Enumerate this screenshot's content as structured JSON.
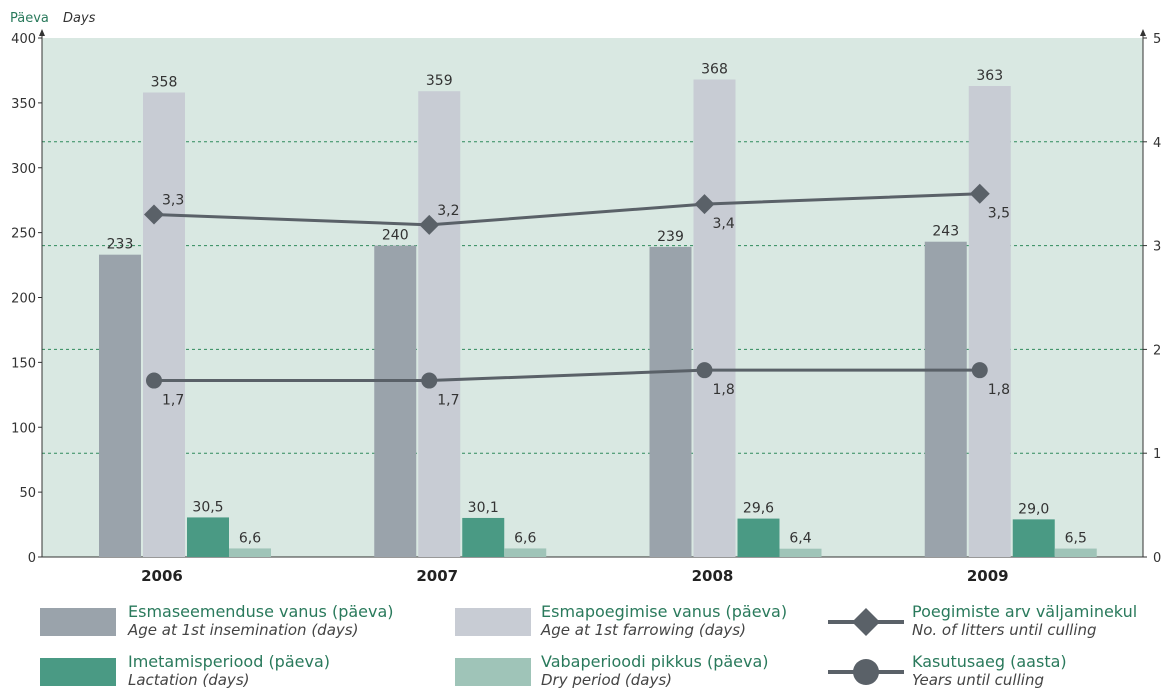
{
  "chart_data": {
    "type": "bar",
    "y_left_label_et": "Päeva",
    "y_left_label_en": "Days",
    "y_left_range": [
      0,
      400
    ],
    "y_left_ticks": [
      0,
      50,
      100,
      150,
      200,
      250,
      300,
      350,
      400
    ],
    "y_right_range": [
      0,
      5
    ],
    "y_right_ticks": [
      0,
      1,
      2,
      3,
      4,
      5
    ],
    "categories": [
      "2006",
      "2007",
      "2008",
      "2009"
    ],
    "bar_series": [
      {
        "name_et": "Esmaseemenduse vanus (päeva)",
        "name_en": "Age at 1st insemination (days)",
        "color": "#9aa3ab",
        "values": [
          233,
          240,
          239,
          243
        ],
        "labels": [
          "233",
          "240",
          "239",
          "243"
        ]
      },
      {
        "name_et": "Esmapoegimise vanus (päeva)",
        "name_en": "Age at 1st farrowing (days)",
        "color": "#c8ccd4",
        "values": [
          358,
          359,
          368,
          363
        ],
        "labels": [
          "358",
          "359",
          "368",
          "363"
        ]
      },
      {
        "name_et": "Imetamisperiood (päeva)",
        "name_en": "Lactation (days)",
        "color": "#4a9a84",
        "values": [
          30.5,
          30.1,
          29.6,
          29.0
        ],
        "labels": [
          "30,5",
          "30,1",
          "29,6",
          "29,0"
        ]
      },
      {
        "name_et": "Vabaperioodi pikkus (päeva)",
        "name_en": "Dry period (days)",
        "color": "#9fc4b8",
        "values": [
          6.6,
          6.6,
          6.4,
          6.5
        ],
        "labels": [
          "6,6",
          "6,6",
          "6,4",
          "6,5"
        ]
      }
    ],
    "line_series": [
      {
        "name_et": "Poegimiste arv väljaminekul",
        "name_en": "No. of litters until culling",
        "marker": "diamond",
        "axis": "right",
        "color": "#5a6168",
        "values": [
          3.3,
          3.2,
          3.4,
          3.5
        ],
        "labels": [
          "3,3",
          "3,2",
          "3,4",
          "3,5"
        ]
      },
      {
        "name_et": "Kasutusaeg (aasta)",
        "name_en": "Years until culling",
        "marker": "circle",
        "axis": "right",
        "color": "#5a6168",
        "values": [
          1.7,
          1.7,
          1.8,
          1.8
        ],
        "labels": [
          "1,7",
          "1,7",
          "1,8",
          "1,8"
        ]
      }
    ],
    "grid": "horizontal dashed at right-axis integers",
    "legend_position": "bottom",
    "plot_background": "#d9e8e2"
  }
}
